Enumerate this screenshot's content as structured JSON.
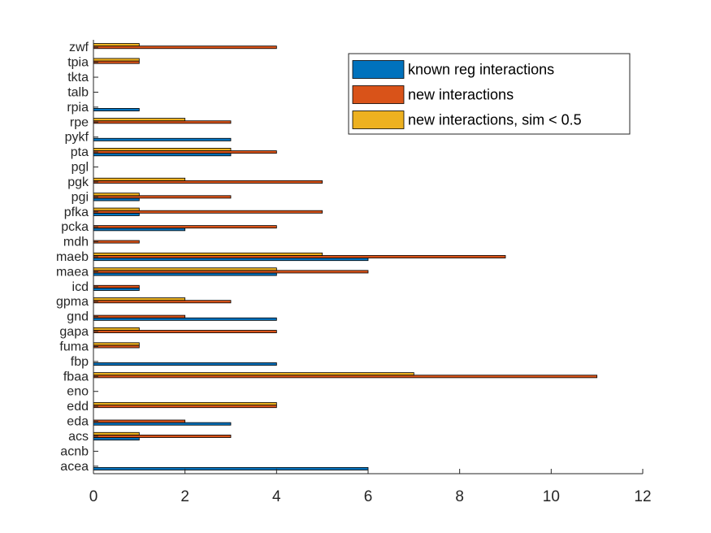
{
  "chart_data": {
    "type": "bar",
    "orientation": "horizontal",
    "categories": [
      "acea",
      "acnb",
      "acs",
      "eda",
      "edd",
      "eno",
      "fbaa",
      "fbp",
      "fuma",
      "gapa",
      "gnd",
      "gpma",
      "icd",
      "maea",
      "maeb",
      "mdh",
      "pcka",
      "pfka",
      "pgi",
      "pgk",
      "pgl",
      "pta",
      "pykf",
      "rpe",
      "rpia",
      "talb",
      "tkta",
      "tpia",
      "zwf"
    ],
    "series": [
      {
        "name": "known reg interactions",
        "color": "#0072BD",
        "values": [
          6,
          0,
          1,
          3,
          0,
          0,
          0,
          4,
          0,
          0,
          4,
          0,
          1,
          4,
          6,
          0,
          2,
          1,
          1,
          0,
          0,
          3,
          3,
          0,
          1,
          0,
          0,
          0,
          0
        ]
      },
      {
        "name": "new interactions",
        "color": "#D95319",
        "values": [
          0,
          0,
          3,
          2,
          4,
          0,
          11,
          0,
          1,
          4,
          2,
          3,
          1,
          6,
          9,
          1,
          4,
          5,
          3,
          5,
          0,
          4,
          0,
          3,
          0,
          0,
          0,
          1,
          4
        ]
      },
      {
        "name": "new interactions, sim < 0.5",
        "color": "#EDB120",
        "values": [
          0,
          0,
          1,
          0,
          4,
          0,
          7,
          0,
          1,
          1,
          0,
          2,
          0,
          4,
          5,
          0,
          0,
          1,
          1,
          2,
          0,
          3,
          0,
          2,
          0,
          0,
          0,
          1,
          1
        ]
      }
    ],
    "xlim": [
      0,
      12
    ],
    "xticks": [
      0,
      2,
      4,
      6,
      8,
      10,
      12
    ],
    "xlabel": "",
    "ylabel": "",
    "title": "",
    "grid": false,
    "legend_position": "top-right"
  }
}
